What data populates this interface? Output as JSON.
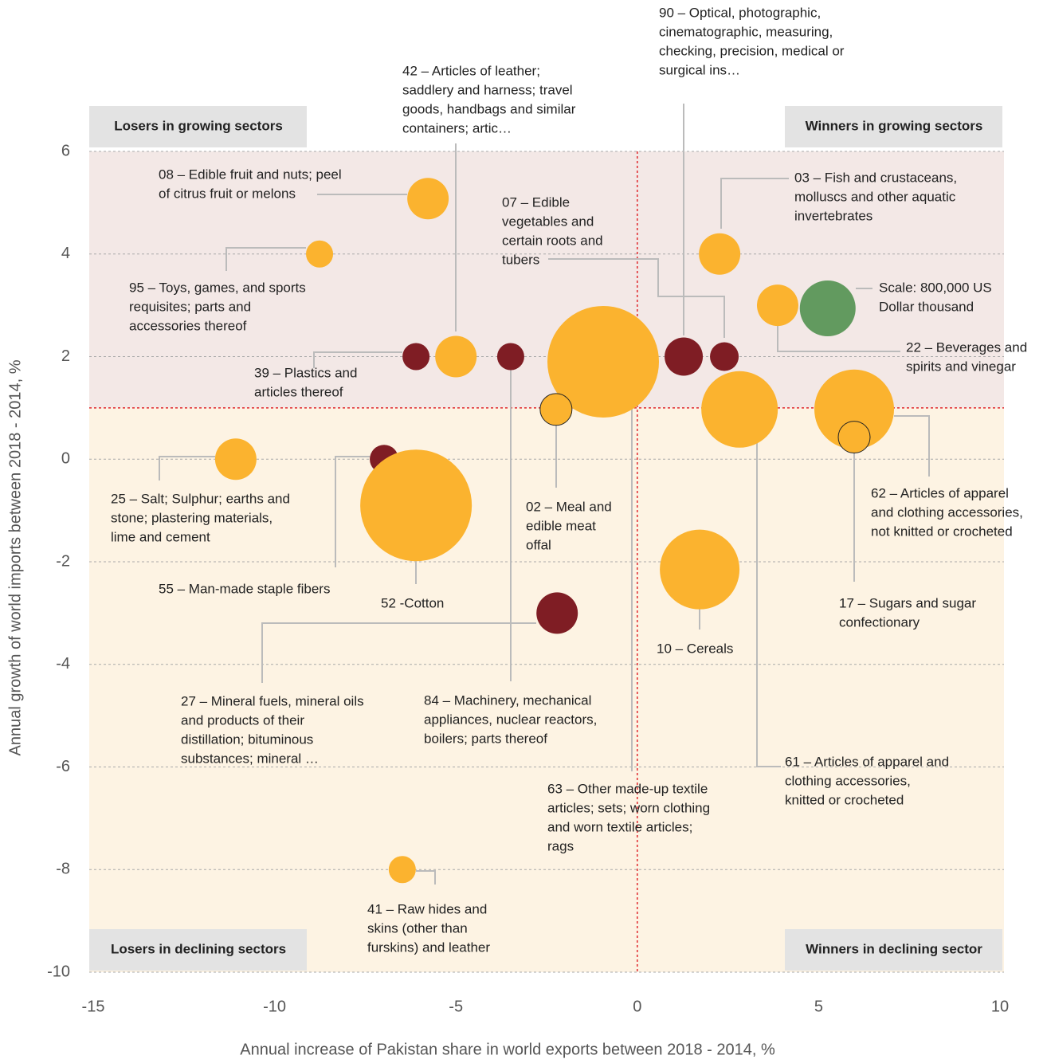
{
  "chart_data": {
    "type": "scatter",
    "x_label": "Annual increase of Pakistan share in world exports between 2018 - 2014, %",
    "y_label": "Annual growth of world imports between 2018 - 2014, %",
    "xlim": [
      -15,
      10
    ],
    "xticks": [
      -15,
      -10,
      -5,
      0,
      5,
      10
    ],
    "ylim": [
      -10,
      6
    ],
    "yticks": [
      -10,
      -8,
      -6,
      -4,
      -2,
      0,
      2,
      4,
      6
    ],
    "grid": true,
    "thresholds": {
      "x": 0,
      "y": 1
    },
    "quadrants": [
      "Losers in growing sectors",
      "Winners in growing sectors",
      "Losers in declining sectors",
      "Winners in declining sector"
    ],
    "points": [
      {
        "label": [
          "08 – Edible fruit and nuts; peel",
          "of citrus fruit or melons"
        ],
        "x": -5.77,
        "y": 5.08,
        "size": 441000,
        "color": "#fbb32f",
        "outlined": false
      },
      {
        "label": [
          "95 – Toys, games, and sports",
          "requisites; parts and",
          "accessories thereof"
        ],
        "x": -8.76,
        "y": 4,
        "size": 189000,
        "color": "#fbb32f",
        "outlined": false
      },
      {
        "label": [
          "03 – Fish and crustaceans,",
          "molluscs and other aquatic",
          "invertebrates"
        ],
        "x": 2.27,
        "y": 4,
        "size": 441000,
        "color": "#fbb32f",
        "outlined": false
      },
      {
        "label": [
          "22 – Beverages and",
          "spirits and vinegar"
        ],
        "x": 3.87,
        "y": 3.0,
        "size": 441000,
        "color": "#fbb32f",
        "outlined": false
      },
      {
        "label": [
          "Scale: 800,000 US",
          "Dollar thousand"
        ],
        "x": 5.25,
        "y": 2.94,
        "size": 800000,
        "color": "#629a5f",
        "outlined": false
      },
      {
        "label": [
          "39 – Plastics and",
          "articles thereof"
        ],
        "x": -6.1,
        "y": 2,
        "size": 189000,
        "color": "#7f1d24",
        "outlined": false
      },
      {
        "label": [
          "42 – Articles of leather;",
          "saddlery and harness; travel",
          "goods, handbags and similar",
          "containers; artic…"
        ],
        "x": -5.0,
        "y": 2,
        "size": 441000,
        "color": "#fbb32f",
        "outlined": false
      },
      {
        "label": [
          "84 – Machinery, mechanical",
          "appliances, nuclear reactors,",
          "boilers; parts thereof"
        ],
        "x": -3.49,
        "y": 2,
        "size": 189000,
        "color": "#7f1d24",
        "outlined": false
      },
      {
        "label": [
          "63 – Other made-up textile",
          "articles; sets; worn clothing",
          "and worn textile articles;",
          "rags"
        ],
        "x": -0.94,
        "y": 1.9,
        "size": 3200000,
        "color": "#fbb32f",
        "outlined": false
      },
      {
        "label": [
          "90 – Optical, photographic,",
          "cinematographic, measuring,",
          "checking, precision, medical or",
          "surgical ins…"
        ],
        "x": 1.28,
        "y": 2,
        "size": 376000,
        "color": "#7f1d24",
        "outlined": false
      },
      {
        "label": [
          "07 – Edible",
          "vegetables and",
          "certain roots and",
          "tubers"
        ],
        "x": 2.4,
        "y": 2,
        "size": 212000,
        "color": "#7f1d24",
        "outlined": false
      },
      {
        "label": [
          "02 – Meal and",
          "edible meat",
          "offal"
        ],
        "x": -2.24,
        "y": 0.97,
        "size": 261000,
        "color": "#fbb32f",
        "outlined": true
      },
      {
        "label": [
          "61 – Articles of apparel and",
          "clothing accessories,",
          "knitted or crocheted"
        ],
        "x": 2.82,
        "y": 0.97,
        "size": 1505000,
        "color": "#fbb32f",
        "outlined": false
      },
      {
        "label": [
          "62 – Articles of apparel",
          "and clothing accessories,",
          "not knitted or crocheted"
        ],
        "x": 5.98,
        "y": 0.97,
        "size": 1633000,
        "color": "#fbb32f",
        "outlined": false
      },
      {
        "label": [
          "17 – Sugars and sugar",
          "confectionary"
        ],
        "x": 5.98,
        "y": 0.43,
        "size": 261000,
        "color": "#fbb32f",
        "outlined": true
      },
      {
        "label": [
          "25 – Salt; Sulphur; earths and",
          "stone; plastering materials,",
          "lime and cement"
        ],
        "x": -11.07,
        "y": 0,
        "size": 441000,
        "color": "#fbb32f",
        "outlined": false
      },
      {
        "label": [
          "55 – Man-made staple fibers"
        ],
        "x": -6.98,
        "y": 0,
        "size": 212000,
        "color": "#7f1d24",
        "outlined": false
      },
      {
        "label": [
          "52 -Cotton"
        ],
        "x": -6.1,
        "y": -0.9,
        "size": 3200000,
        "color": "#fbb32f",
        "outlined": false
      },
      {
        "label": [
          "10 – Cereals"
        ],
        "x": 1.72,
        "y": -2.15,
        "size": 1633000,
        "color": "#fbb32f",
        "outlined": false
      },
      {
        "label": [
          "27 – Mineral fuels, mineral oils",
          "and products of their",
          "distillation; bituminous",
          "substances; mineral …"
        ],
        "x": -2.21,
        "y": -3.0,
        "size": 441000,
        "color": "#7f1d24",
        "outlined": false
      },
      {
        "label": [
          "41 – Raw hides and",
          "skins (other than",
          "furskins) and leather"
        ],
        "x": -6.48,
        "y": -8,
        "size": 189000,
        "color": "#fbb32f",
        "outlined": false
      }
    ]
  }
}
